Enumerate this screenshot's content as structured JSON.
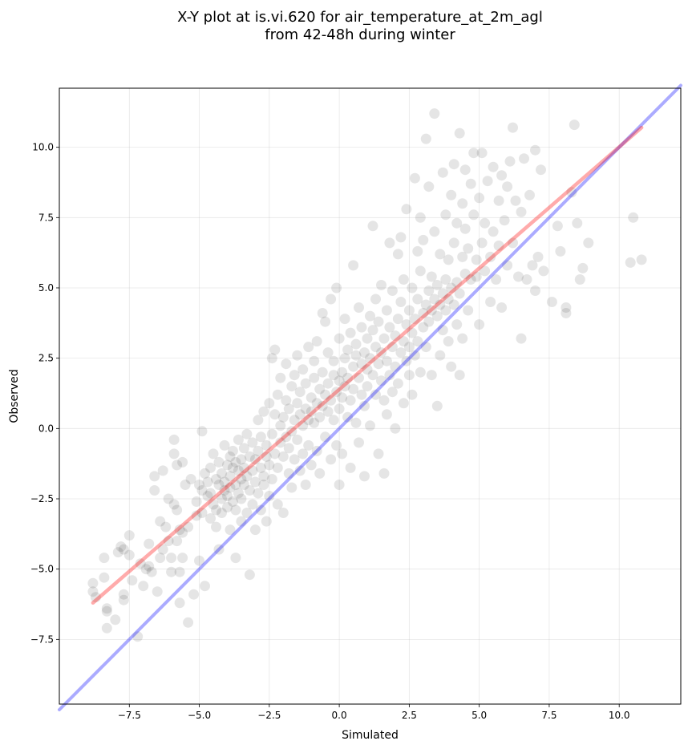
{
  "chart_data": {
    "type": "scatter",
    "title": [
      "X-Y plot at is.vi.620 for air_temperature_at_2m_agl",
      "from 42-48h during winter"
    ],
    "xlabel": "Simulated",
    "ylabel": "Observed",
    "xlim": [
      -10.0,
      12.2
    ],
    "ylim": [
      -9.8,
      12.1
    ],
    "xticks": [
      -7.5,
      -5.0,
      -2.5,
      0.0,
      2.5,
      5.0,
      7.5,
      10.0
    ],
    "yticks": [
      -7.5,
      -5.0,
      -2.5,
      0.0,
      2.5,
      5.0,
      7.5,
      10.0
    ],
    "xtick_labels": [
      "−7.5",
      "−5.0",
      "−2.5",
      "0.0",
      "2.5",
      "5.0",
      "7.5",
      "10.0"
    ],
    "ytick_labels": [
      "−7.5",
      "−5.0",
      "−2.5",
      "0.0",
      "2.5",
      "5.0",
      "7.5",
      "10.0"
    ],
    "grid": true,
    "point_color": "#000000",
    "point_opacity": 0.1,
    "reference_line": {
      "color": "#0000ff",
      "opacity": 0.33,
      "x": [
        -10.0,
        12.2
      ],
      "y": [
        -10.0,
        12.2
      ]
    },
    "fit_line": {
      "color": "#ff0000",
      "opacity": 0.33,
      "x": [
        -8.8,
        10.8
      ],
      "y": [
        -6.2,
        10.7
      ]
    },
    "points": [
      [
        -8.8,
        -5.5
      ],
      [
        -8.8,
        -5.8
      ],
      [
        -8.7,
        -6.0
      ],
      [
        -8.4,
        -4.6
      ],
      [
        -8.4,
        -5.3
      ],
      [
        -8.3,
        -6.4
      ],
      [
        -8.3,
        -7.1
      ],
      [
        -8.3,
        -6.5
      ],
      [
        -8.0,
        -6.8
      ],
      [
        -7.9,
        -4.4
      ],
      [
        -7.8,
        -4.2
      ],
      [
        -7.7,
        -4.3
      ],
      [
        -7.7,
        -5.9
      ],
      [
        -7.7,
        -6.1
      ],
      [
        -7.5,
        -3.8
      ],
      [
        -7.5,
        -4.5
      ],
      [
        -7.4,
        -5.4
      ],
      [
        -7.2,
        -7.4
      ],
      [
        -7.1,
        -4.8
      ],
      [
        -7.0,
        -5.6
      ],
      [
        -6.9,
        -5.0
      ],
      [
        -6.8,
        -4.1
      ],
      [
        -6.8,
        -4.9
      ],
      [
        -6.7,
        -5.1
      ],
      [
        -6.6,
        -2.2
      ],
      [
        -6.6,
        -1.7
      ],
      [
        -6.5,
        -5.8
      ],
      [
        -6.4,
        -3.3
      ],
      [
        -6.4,
        -4.6
      ],
      [
        -6.3,
        -1.5
      ],
      [
        -6.3,
        -4.3
      ],
      [
        -6.2,
        -3.5
      ],
      [
        -6.1,
        -2.5
      ],
      [
        -6.1,
        -4.0
      ],
      [
        -6.0,
        -5.1
      ],
      [
        -6.0,
        -4.6
      ],
      [
        -5.9,
        -2.7
      ],
      [
        -5.9,
        -0.4
      ],
      [
        -5.9,
        -0.9
      ],
      [
        -5.8,
        -1.3
      ],
      [
        -5.8,
        -2.9
      ],
      [
        -5.8,
        -4.0
      ],
      [
        -5.7,
        -5.1
      ],
      [
        -5.7,
        -3.6
      ],
      [
        -5.7,
        -6.2
      ],
      [
        -5.6,
        -1.2
      ],
      [
        -5.6,
        -3.7
      ],
      [
        -5.6,
        -4.6
      ],
      [
        -5.5,
        -2.0
      ],
      [
        -5.4,
        -3.5
      ],
      [
        -5.4,
        -6.9
      ],
      [
        -5.3,
        -1.8
      ],
      [
        -5.2,
        -5.9
      ],
      [
        -5.1,
        -2.6
      ],
      [
        -5.1,
        -3.1
      ],
      [
        -5.0,
        -2.0
      ],
      [
        -5.0,
        -4.7
      ],
      [
        -4.9,
        -0.1
      ],
      [
        -4.9,
        -2.2
      ],
      [
        -4.9,
        -3.0
      ],
      [
        -4.8,
        -5.6
      ],
      [
        -4.8,
        -1.6
      ],
      [
        -4.7,
        -2.4
      ],
      [
        -4.7,
        -1.9
      ],
      [
        -4.6,
        -2.3
      ],
      [
        -4.6,
        -3.2
      ],
      [
        -4.6,
        -1.4
      ],
      [
        -4.5,
        -0.9
      ],
      [
        -4.5,
        -2.7
      ],
      [
        -4.4,
        -1.8
      ],
      [
        -4.4,
        -2.9
      ],
      [
        -4.4,
        -3.5
      ],
      [
        -4.3,
        -4.3
      ],
      [
        -4.3,
        -1.2
      ],
      [
        -4.3,
        -2.0
      ],
      [
        -4.2,
        -2.5
      ],
      [
        -4.2,
        -1.6
      ],
      [
        -4.2,
        -3.0
      ],
      [
        -4.1,
        -0.6
      ],
      [
        -4.1,
        -2.2
      ],
      [
        -4.1,
        -1.9
      ],
      [
        -4.0,
        -1.3
      ],
      [
        -4.0,
        -2.8
      ],
      [
        -4.0,
        -2.4
      ],
      [
        -3.9,
        -1.0
      ],
      [
        -3.9,
        -1.7
      ],
      [
        -3.9,
        -3.6
      ],
      [
        -3.9,
        -2.1
      ],
      [
        -3.8,
        -1.4
      ],
      [
        -3.8,
        -2.6
      ],
      [
        -3.8,
        -0.8
      ],
      [
        -3.7,
        -2.0
      ],
      [
        -3.7,
        -1.2
      ],
      [
        -3.7,
        -2.9
      ],
      [
        -3.7,
        -4.6
      ],
      [
        -3.6,
        -1.5
      ],
      [
        -3.6,
        -2.3
      ],
      [
        -3.6,
        -0.4
      ],
      [
        -3.5,
        -1.8
      ],
      [
        -3.5,
        -3.3
      ],
      [
        -3.5,
        -1.1
      ],
      [
        -3.5,
        -2.5
      ],
      [
        -3.4,
        -0.7
      ],
      [
        -3.4,
        -2.0
      ],
      [
        -3.4,
        -1.4
      ],
      [
        -3.3,
        -3.0
      ],
      [
        -3.3,
        -1.7
      ],
      [
        -3.3,
        -0.2
      ],
      [
        -3.2,
        -2.2
      ],
      [
        -3.2,
        -1.0
      ],
      [
        -3.2,
        -5.2
      ],
      [
        -3.1,
        -1.5
      ],
      [
        -3.1,
        -2.7
      ],
      [
        -3.1,
        -0.5
      ],
      [
        -3.0,
        -1.9
      ],
      [
        -3.0,
        -3.6
      ],
      [
        -3.0,
        -1.1
      ],
      [
        -2.9,
        0.3
      ],
      [
        -2.9,
        -2.3
      ],
      [
        -2.9,
        -0.8
      ],
      [
        -2.8,
        -1.4
      ],
      [
        -2.8,
        -2.9
      ],
      [
        -2.8,
        -0.3
      ],
      [
        -2.7,
        -1.7
      ],
      [
        -2.7,
        0.6
      ],
      [
        -2.7,
        -2.0
      ],
      [
        -2.6,
        -1.0
      ],
      [
        -2.6,
        -3.3
      ],
      [
        -2.6,
        -0.6
      ],
      [
        -2.5,
        0.9
      ],
      [
        -2.5,
        -1.3
      ],
      [
        -2.5,
        -2.4
      ],
      [
        -2.4,
        2.5
      ],
      [
        -2.4,
        -0.2
      ],
      [
        -2.4,
        -1.8
      ],
      [
        -2.3,
        2.8
      ],
      [
        -2.3,
        0.5
      ],
      [
        -2.3,
        -0.9
      ],
      [
        -2.2,
        1.2
      ],
      [
        -2.2,
        -1.4
      ],
      [
        -2.2,
        -2.7
      ],
      [
        -2.1,
        0.1
      ],
      [
        -2.1,
        -0.5
      ],
      [
        -2.1,
        1.8
      ],
      [
        -2.0,
        -1.0
      ],
      [
        -2.0,
        0.4
      ],
      [
        -2.0,
        -3.0
      ],
      [
        -1.9,
        1.0
      ],
      [
        -1.9,
        -0.3
      ],
      [
        -1.9,
        2.3
      ],
      [
        -1.8,
        -1.6
      ],
      [
        -1.8,
        0.7
      ],
      [
        -1.8,
        -0.7
      ],
      [
        -1.7,
        1.5
      ],
      [
        -1.7,
        -0.1
      ],
      [
        -1.7,
        -2.1
      ],
      [
        -1.6,
        0.3
      ],
      [
        -1.6,
        1.9
      ],
      [
        -1.6,
        -1.1
      ],
      [
        -1.5,
        0.9
      ],
      [
        -1.5,
        2.6
      ],
      [
        -1.5,
        -0.4
      ],
      [
        -1.4,
        0.5
      ],
      [
        -1.4,
        -1.5
      ],
      [
        -1.4,
        1.3
      ],
      [
        -1.3,
        0.1
      ],
      [
        -1.3,
        2.1
      ],
      [
        -1.3,
        -0.9
      ],
      [
        -1.2,
        0.7
      ],
      [
        -1.2,
        -2.0
      ],
      [
        -1.2,
        1.6
      ],
      [
        -1.1,
        0.3
      ],
      [
        -1.1,
        2.9
      ],
      [
        -1.1,
        -0.6
      ],
      [
        -1.0,
        1.1
      ],
      [
        -1.0,
        0.6
      ],
      [
        -1.0,
        -1.3
      ],
      [
        -0.9,
        1.8
      ],
      [
        -0.9,
        0.2
      ],
      [
        -0.9,
        2.4
      ],
      [
        -0.8,
        0.9
      ],
      [
        -0.8,
        -0.8
      ],
      [
        -0.8,
        3.1
      ],
      [
        -0.7,
        1.4
      ],
      [
        -0.7,
        0.4
      ],
      [
        -0.7,
        -1.6
      ],
      [
        -0.6,
        2.0
      ],
      [
        -0.6,
        0.8
      ],
      [
        -0.6,
        4.1
      ],
      [
        -0.5,
        1.2
      ],
      [
        -0.5,
        -0.3
      ],
      [
        -0.5,
        3.8
      ],
      [
        -0.4,
        1.6
      ],
      [
        -0.4,
        0.6
      ],
      [
        -0.4,
        2.7
      ],
      [
        -0.3,
        1.0
      ],
      [
        -0.3,
        -1.1
      ],
      [
        -0.3,
        4.6
      ],
      [
        -0.2,
        1.9
      ],
      [
        -0.2,
        0.3
      ],
      [
        -0.2,
        2.4
      ],
      [
        -0.1,
        1.3
      ],
      [
        -0.1,
        -0.6
      ],
      [
        -0.1,
        5.0
      ],
      [
        0.0,
        1.7
      ],
      [
        0.0,
        0.7
      ],
      [
        0.0,
        3.2
      ],
      [
        0.0,
        -2.0
      ],
      [
        0.1,
        2.0
      ],
      [
        0.1,
        1.1
      ],
      [
        0.1,
        -0.9
      ],
      [
        0.2,
        2.5
      ],
      [
        0.2,
        1.5
      ],
      [
        0.2,
        3.9
      ],
      [
        0.3,
        0.4
      ],
      [
        0.3,
        2.8
      ],
      [
        0.3,
        1.8
      ],
      [
        0.4,
        3.4
      ],
      [
        0.4,
        1.0
      ],
      [
        0.4,
        -1.4
      ],
      [
        0.5,
        2.2
      ],
      [
        0.5,
        5.8
      ],
      [
        0.5,
        1.4
      ],
      [
        0.6,
        3.0
      ],
      [
        0.6,
        0.2
      ],
      [
        0.6,
        2.6
      ],
      [
        0.7,
        1.8
      ],
      [
        0.7,
        4.3
      ],
      [
        0.7,
        -0.5
      ],
      [
        0.8,
        2.3
      ],
      [
        0.8,
        1.2
      ],
      [
        0.8,
        3.6
      ],
      [
        0.9,
        2.7
      ],
      [
        0.9,
        0.8
      ],
      [
        0.9,
        -1.7
      ],
      [
        1.0,
        2.1
      ],
      [
        1.0,
        3.2
      ],
      [
        1.0,
        1.5
      ],
      [
        1.1,
        4.0
      ],
      [
        1.1,
        2.5
      ],
      [
        1.1,
        0.1
      ],
      [
        1.2,
        1.9
      ],
      [
        1.2,
        3.5
      ],
      [
        1.2,
        7.2
      ],
      [
        1.3,
        2.9
      ],
      [
        1.3,
        1.2
      ],
      [
        1.3,
        4.6
      ],
      [
        1.4,
        2.3
      ],
      [
        1.4,
        -0.9
      ],
      [
        1.4,
        3.8
      ],
      [
        1.5,
        1.7
      ],
      [
        1.5,
        2.7
      ],
      [
        1.5,
        5.1
      ],
      [
        1.6,
        3.2
      ],
      [
        1.6,
        1.0
      ],
      [
        1.6,
        -1.6
      ],
      [
        1.7,
        2.4
      ],
      [
        1.7,
        4.2
      ],
      [
        1.7,
        0.5
      ],
      [
        1.8,
        3.6
      ],
      [
        1.8,
        1.9
      ],
      [
        1.8,
        6.6
      ],
      [
        1.9,
        2.9
      ],
      [
        1.9,
        1.3
      ],
      [
        1.9,
        4.9
      ],
      [
        2.0,
        3.3
      ],
      [
        2.0,
        2.2
      ],
      [
        2.0,
        0.0
      ],
      [
        2.1,
        6.2
      ],
      [
        2.1,
        3.9
      ],
      [
        2.1,
        1.6
      ],
      [
        2.2,
        2.7
      ],
      [
        2.2,
        4.5
      ],
      [
        2.2,
        6.8
      ],
      [
        2.3,
        3.1
      ],
      [
        2.3,
        0.9
      ],
      [
        2.3,
        5.3
      ],
      [
        2.4,
        2.4
      ],
      [
        2.4,
        3.7
      ],
      [
        2.4,
        7.8
      ],
      [
        2.5,
        1.9
      ],
      [
        2.5,
        4.2
      ],
      [
        2.5,
        2.9
      ],
      [
        2.6,
        5.0
      ],
      [
        2.6,
        3.4
      ],
      [
        2.6,
        1.2
      ],
      [
        2.7,
        8.9
      ],
      [
        2.7,
        3.9
      ],
      [
        2.7,
        2.6
      ],
      [
        2.8,
        4.6
      ],
      [
        2.8,
        6.3
      ],
      [
        2.8,
        3.1
      ],
      [
        2.9,
        5.6
      ],
      [
        2.9,
        2.0
      ],
      [
        2.9,
        7.5
      ],
      [
        3.0,
        4.1
      ],
      [
        3.0,
        3.6
      ],
      [
        3.0,
        6.7
      ],
      [
        3.1,
        4.4
      ],
      [
        3.1,
        2.9
      ],
      [
        3.1,
        10.3
      ],
      [
        3.2,
        4.9
      ],
      [
        3.2,
        3.8
      ],
      [
        3.2,
        8.6
      ],
      [
        3.3,
        4.2
      ],
      [
        3.3,
        5.4
      ],
      [
        3.3,
        1.9
      ],
      [
        3.4,
        4.6
      ],
      [
        3.4,
        7.0
      ],
      [
        3.4,
        11.2
      ],
      [
        3.5,
        4.0
      ],
      [
        3.5,
        5.1
      ],
      [
        3.5,
        0.8
      ],
      [
        3.6,
        4.4
      ],
      [
        3.6,
        6.2
      ],
      [
        3.6,
        2.6
      ],
      [
        3.7,
        4.8
      ],
      [
        3.7,
        9.1
      ],
      [
        3.7,
        3.5
      ],
      [
        3.8,
        5.3
      ],
      [
        3.8,
        4.2
      ],
      [
        3.8,
        7.6
      ],
      [
        3.9,
        4.6
      ],
      [
        3.9,
        3.1
      ],
      [
        3.9,
        6.0
      ],
      [
        4.0,
        5.0
      ],
      [
        4.0,
        8.3
      ],
      [
        4.0,
        2.2
      ],
      [
        4.1,
        4.4
      ],
      [
        4.1,
        6.6
      ],
      [
        4.1,
        9.4
      ],
      [
        4.2,
        5.2
      ],
      [
        4.2,
        3.7
      ],
      [
        4.2,
        7.3
      ],
      [
        4.3,
        10.5
      ],
      [
        4.3,
        4.8
      ],
      [
        4.3,
        1.9
      ],
      [
        4.4,
        6.1
      ],
      [
        4.4,
        8.0
      ],
      [
        4.4,
        3.2
      ],
      [
        4.5,
        5.5
      ],
      [
        4.5,
        7.1
      ],
      [
        4.5,
        9.2
      ],
      [
        4.6,
        4.2
      ],
      [
        4.6,
        6.4
      ],
      [
        4.7,
        8.7
      ],
      [
        4.7,
        5.3
      ],
      [
        4.8,
        7.6
      ],
      [
        4.8,
        9.8
      ],
      [
        4.9,
        6.0
      ],
      [
        4.9,
        5.4
      ],
      [
        5.0,
        8.2
      ],
      [
        5.0,
        3.7
      ],
      [
        5.1,
        6.6
      ],
      [
        5.1,
        9.8
      ],
      [
        5.2,
        7.3
      ],
      [
        5.2,
        5.6
      ],
      [
        5.3,
        8.8
      ],
      [
        5.4,
        6.1
      ],
      [
        5.4,
        4.5
      ],
      [
        5.5,
        9.3
      ],
      [
        5.5,
        7.0
      ],
      [
        5.6,
        5.3
      ],
      [
        5.7,
        8.1
      ],
      [
        5.7,
        6.5
      ],
      [
        5.8,
        4.3
      ],
      [
        5.8,
        9.0
      ],
      [
        5.9,
        7.4
      ],
      [
        6.0,
        8.6
      ],
      [
        6.0,
        5.8
      ],
      [
        6.1,
        9.5
      ],
      [
        6.2,
        6.6
      ],
      [
        6.2,
        10.7
      ],
      [
        6.3,
        8.1
      ],
      [
        6.4,
        5.4
      ],
      [
        6.5,
        7.7
      ],
      [
        6.5,
        3.2
      ],
      [
        6.6,
        9.6
      ],
      [
        6.7,
        5.3
      ],
      [
        6.8,
        8.3
      ],
      [
        6.9,
        5.8
      ],
      [
        7.0,
        9.9
      ],
      [
        7.0,
        4.9
      ],
      [
        7.1,
        6.1
      ],
      [
        7.2,
        9.2
      ],
      [
        7.3,
        5.6
      ],
      [
        7.6,
        4.5
      ],
      [
        7.8,
        7.2
      ],
      [
        7.9,
        6.3
      ],
      [
        8.1,
        4.3
      ],
      [
        8.1,
        4.1
      ],
      [
        8.3,
        8.4
      ],
      [
        8.4,
        10.8
      ],
      [
        8.5,
        7.3
      ],
      [
        8.6,
        5.3
      ],
      [
        8.7,
        5.7
      ],
      [
        8.9,
        6.6
      ],
      [
        10.4,
        5.9
      ],
      [
        10.5,
        7.5
      ],
      [
        10.8,
        6.0
      ]
    ]
  }
}
